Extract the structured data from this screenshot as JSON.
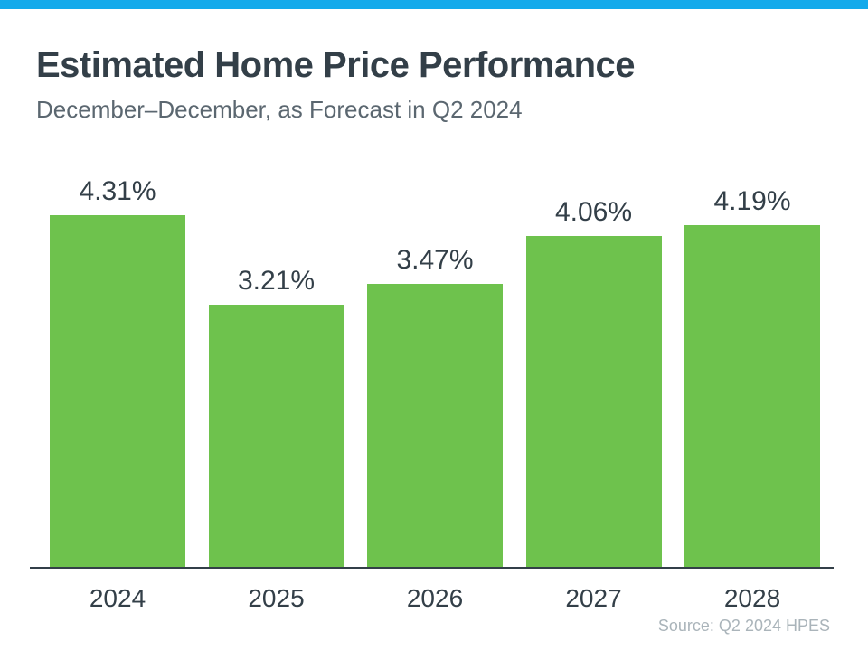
{
  "colors": {
    "top_bar": "#14AAEB",
    "bar_green": "#6EC24D",
    "title_text": "#333F48",
    "subtitle_text": "#5B6770",
    "axis_line": "#333F48",
    "label_text": "#333F48",
    "source_text": "#AAB4BA"
  },
  "header": {
    "title": "Estimated Home Price Performance",
    "subtitle": "December–December, as Forecast in Q2 2024"
  },
  "chart_data": {
    "type": "bar",
    "categories": [
      "2024",
      "2025",
      "2026",
      "2027",
      "2028"
    ],
    "values": [
      4.31,
      3.21,
      3.47,
      4.06,
      4.19
    ],
    "value_labels": [
      "4.31%",
      "3.21%",
      "3.47%",
      "4.06%",
      "4.19%"
    ],
    "title": "Estimated Home Price Performance",
    "subtitle": "December–December, as Forecast in Q2 2024",
    "xlabel": "",
    "ylabel": "",
    "ylim": [
      0,
      4.5
    ],
    "grid": false,
    "legend": false,
    "bar_color": "#6EC24D",
    "value_label_position": "above-bars",
    "axis_shown": "x-only"
  },
  "footer": {
    "source": "Source: Q2 2024 HPES"
  }
}
